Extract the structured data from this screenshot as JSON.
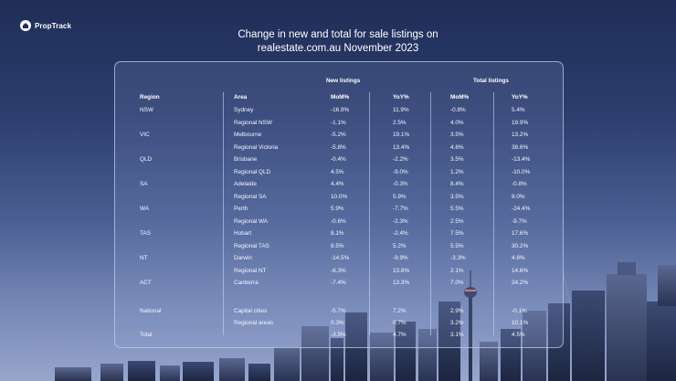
{
  "brand": {
    "logo_text": "PropTrack"
  },
  "title": {
    "line1": "Change in new and total for sale listings on",
    "line2": "realestate.com.au November 2023"
  },
  "table": {
    "group_headers": {
      "new_listings": "New listings",
      "total_listings": "Total listings"
    },
    "columns": {
      "region": "Region",
      "area": "Area",
      "new_mom": "MoM%",
      "new_yoy": "YoY%",
      "total_mom": "MoM%",
      "total_yoy": "YoY%"
    },
    "rows": [
      {
        "region": "NSW",
        "area": "Sydney",
        "new_mom": "-16.9%",
        "new_yoy": "11.9%",
        "total_mom": "-0.8%",
        "total_yoy": "5.4%"
      },
      {
        "region": "",
        "area": "Regional NSW",
        "new_mom": "-1.1%",
        "new_yoy": "2.5%",
        "total_mom": "4.0%",
        "total_yoy": "19.9%"
      },
      {
        "region": "VIC",
        "area": "Melbourne",
        "new_mom": "-5.2%",
        "new_yoy": "19.1%",
        "total_mom": "3.5%",
        "total_yoy": "13.2%"
      },
      {
        "region": "",
        "area": "Regional Victoria",
        "new_mom": "-5.8%",
        "new_yoy": "13.4%",
        "total_mom": "4.6%",
        "total_yoy": "38.6%"
      },
      {
        "region": "QLD",
        "area": "Brisbane",
        "new_mom": "-0.4%",
        "new_yoy": "-2.2%",
        "total_mom": "3.5%",
        "total_yoy": "-13.4%"
      },
      {
        "region": "",
        "area": "Regional QLD",
        "new_mom": "4.5%",
        "new_yoy": "-9.0%",
        "total_mom": "1.2%",
        "total_yoy": "-10.0%"
      },
      {
        "region": "SA",
        "area": "Adelaide",
        "new_mom": "4.4%",
        "new_yoy": "-0.3%",
        "total_mom": "8.4%",
        "total_yoy": "-0.8%"
      },
      {
        "region": "",
        "area": "Regional SA",
        "new_mom": "10.0%",
        "new_yoy": "5.9%",
        "total_mom": "3.5%",
        "total_yoy": "8.0%"
      },
      {
        "region": "WA",
        "area": "Perth",
        "new_mom": "5.9%",
        "new_yoy": "-7.7%",
        "total_mom": "5.5%",
        "total_yoy": "-24.4%"
      },
      {
        "region": "",
        "area": "Regional WA",
        "new_mom": "-0.6%",
        "new_yoy": "-2.3%",
        "total_mom": "2.5%",
        "total_yoy": "-9.7%"
      },
      {
        "region": "TAS",
        "area": "Hobart",
        "new_mom": "8.1%",
        "new_yoy": "-2.4%",
        "total_mom": "7.5%",
        "total_yoy": "17.6%"
      },
      {
        "region": "",
        "area": "Regional TAS",
        "new_mom": "8.5%",
        "new_yoy": "5.2%",
        "total_mom": "5.5%",
        "total_yoy": "30.2%"
      },
      {
        "region": "NT",
        "area": "Darwin",
        "new_mom": "-14.5%",
        "new_yoy": "-9.9%",
        "total_mom": "-3.3%",
        "total_yoy": "4.8%"
      },
      {
        "region": "",
        "area": "Regional NT",
        "new_mom": "-6.3%",
        "new_yoy": "13.8%",
        "total_mom": "2.1%",
        "total_yoy": "14.6%"
      },
      {
        "region": "ACT",
        "area": "Canberra",
        "new_mom": "-7.4%",
        "new_yoy": "13.3%",
        "total_mom": "7.0%",
        "total_yoy": "24.2%"
      },
      {
        "region": "National",
        "area": "Capital cities",
        "new_mom": "-5.7%",
        "new_yoy": "7.2%",
        "total_mom": "2.9%",
        "total_yoy": "-0.1%"
      },
      {
        "region": "",
        "area": "Regional areas",
        "new_mom": "0.3%",
        "new_yoy": "0.7%",
        "total_mom": "3.2%",
        "total_yoy": "10.1%"
      },
      {
        "region": "Total",
        "area": "",
        "new_mom": "-3.5%",
        "new_yoy": "4.7%",
        "total_mom": "3.1%",
        "total_yoy": "4.5%"
      }
    ]
  }
}
